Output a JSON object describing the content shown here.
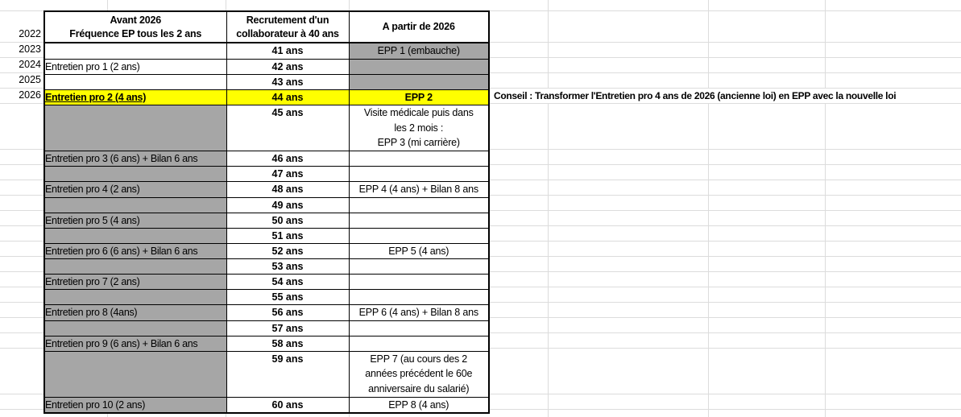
{
  "note": "Conseil : Transformer l'Entretien pro 4 ans de 2026 (ancienne loi) en EPP avec la nouvelle loi",
  "years": [
    "2022",
    "2023",
    "2024",
    "2025",
    "2026"
  ],
  "colors": {
    "highlight_yellow": "#FFFF00",
    "cell_gray": "#A6A6A6",
    "grid_line": "#DCDCDC",
    "border_black": "#000000"
  },
  "table": {
    "headers": [
      "Avant 2026\nFréquence EP tous les 2 ans",
      "Recrutement d'un\ncollaborateur à 40 ans",
      "A partir de 2026"
    ],
    "rows": [
      {
        "c1": "",
        "c2": "41 ans",
        "c3": "EPP 1 (embauche)",
        "c1_gray": false,
        "c3_gray": true,
        "highlight": false,
        "tall": false,
        "c1_underline": false
      },
      {
        "c1": "Entretien pro 1 (2 ans)",
        "c2": "42 ans",
        "c3": "",
        "c1_gray": false,
        "c3_gray": true,
        "highlight": false,
        "tall": false,
        "c1_underline": false
      },
      {
        "c1": "",
        "c2": "43 ans",
        "c3": "",
        "c1_gray": false,
        "c3_gray": true,
        "highlight": false,
        "tall": false,
        "c1_underline": false
      },
      {
        "c1": "Entretien pro 2 (4 ans)",
        "c2": "44 ans",
        "c3": "EPP 2",
        "c1_gray": false,
        "c3_gray": false,
        "highlight": true,
        "tall": false,
        "c1_underline": true
      },
      {
        "c1": "",
        "c2": "45 ans",
        "c3": "Visite médicale puis dans\nles 2 mois :\nEPP 3 (mi carrière)",
        "c1_gray": true,
        "c3_gray": false,
        "highlight": false,
        "tall": true,
        "c1_underline": false
      },
      {
        "c1": "Entretien pro 3 (6 ans) + Bilan 6 ans",
        "c2": "46 ans",
        "c3": "",
        "c1_gray": true,
        "c3_gray": false,
        "highlight": false,
        "tall": false,
        "c1_underline": false
      },
      {
        "c1": "",
        "c2": "47 ans",
        "c3": "",
        "c1_gray": true,
        "c3_gray": false,
        "highlight": false,
        "tall": false,
        "c1_underline": false
      },
      {
        "c1": "Entretien pro 4 (2 ans)",
        "c2": "48 ans",
        "c3": "EPP 4 (4 ans) + Bilan 8 ans",
        "c1_gray": true,
        "c3_gray": false,
        "highlight": false,
        "tall": false,
        "c1_underline": false
      },
      {
        "c1": "",
        "c2": "49 ans",
        "c3": "",
        "c1_gray": true,
        "c3_gray": false,
        "highlight": false,
        "tall": false,
        "c1_underline": false
      },
      {
        "c1": "Entretien pro 5 (4 ans)",
        "c2": "50 ans",
        "c3": "",
        "c1_gray": true,
        "c3_gray": false,
        "highlight": false,
        "tall": false,
        "c1_underline": false
      },
      {
        "c1": "",
        "c2": "51 ans",
        "c3": "",
        "c1_gray": true,
        "c3_gray": false,
        "highlight": false,
        "tall": false,
        "c1_underline": false
      },
      {
        "c1": "Entretien pro 6 (6 ans) + Bilan 6 ans",
        "c2": "52 ans",
        "c3": "EPP 5 (4 ans)",
        "c1_gray": true,
        "c3_gray": false,
        "highlight": false,
        "tall": false,
        "c1_underline": false
      },
      {
        "c1": "",
        "c2": "53 ans",
        "c3": "",
        "c1_gray": true,
        "c3_gray": false,
        "highlight": false,
        "tall": false,
        "c1_underline": false
      },
      {
        "c1": "Entretien pro 7 (2 ans)",
        "c2": "54 ans",
        "c3": "",
        "c1_gray": true,
        "c3_gray": false,
        "highlight": false,
        "tall": false,
        "c1_underline": false
      },
      {
        "c1": "",
        "c2": "55 ans",
        "c3": "",
        "c1_gray": true,
        "c3_gray": false,
        "highlight": false,
        "tall": false,
        "c1_underline": false
      },
      {
        "c1": "Entretien pro 8 (4ans)",
        "c2": "56 ans",
        "c3": "EPP 6 (4 ans) + Bilan 8 ans",
        "c1_gray": true,
        "c3_gray": false,
        "highlight": false,
        "tall": false,
        "c1_underline": false
      },
      {
        "c1": "",
        "c2": "57 ans",
        "c3": "",
        "c1_gray": true,
        "c3_gray": false,
        "highlight": false,
        "tall": false,
        "c1_underline": false
      },
      {
        "c1": "Entretien pro 9 (6 ans) + Bilan 6 ans",
        "c2": "58 ans",
        "c3": "",
        "c1_gray": true,
        "c3_gray": false,
        "highlight": false,
        "tall": false,
        "c1_underline": false
      },
      {
        "c1": "",
        "c2": "59 ans",
        "c3": "EPP 7 (au cours des 2\nannées précédent le 60e\nanniversaire du salarié)",
        "c1_gray": true,
        "c3_gray": false,
        "highlight": false,
        "tall": true,
        "c1_underline": false
      },
      {
        "c1": "Entretien pro 10 (2 ans)",
        "c2": "60 ans",
        "c3": "EPP 8 (4 ans)",
        "c1_gray": true,
        "c3_gray": false,
        "highlight": false,
        "tall": false,
        "c1_underline": false
      }
    ]
  }
}
